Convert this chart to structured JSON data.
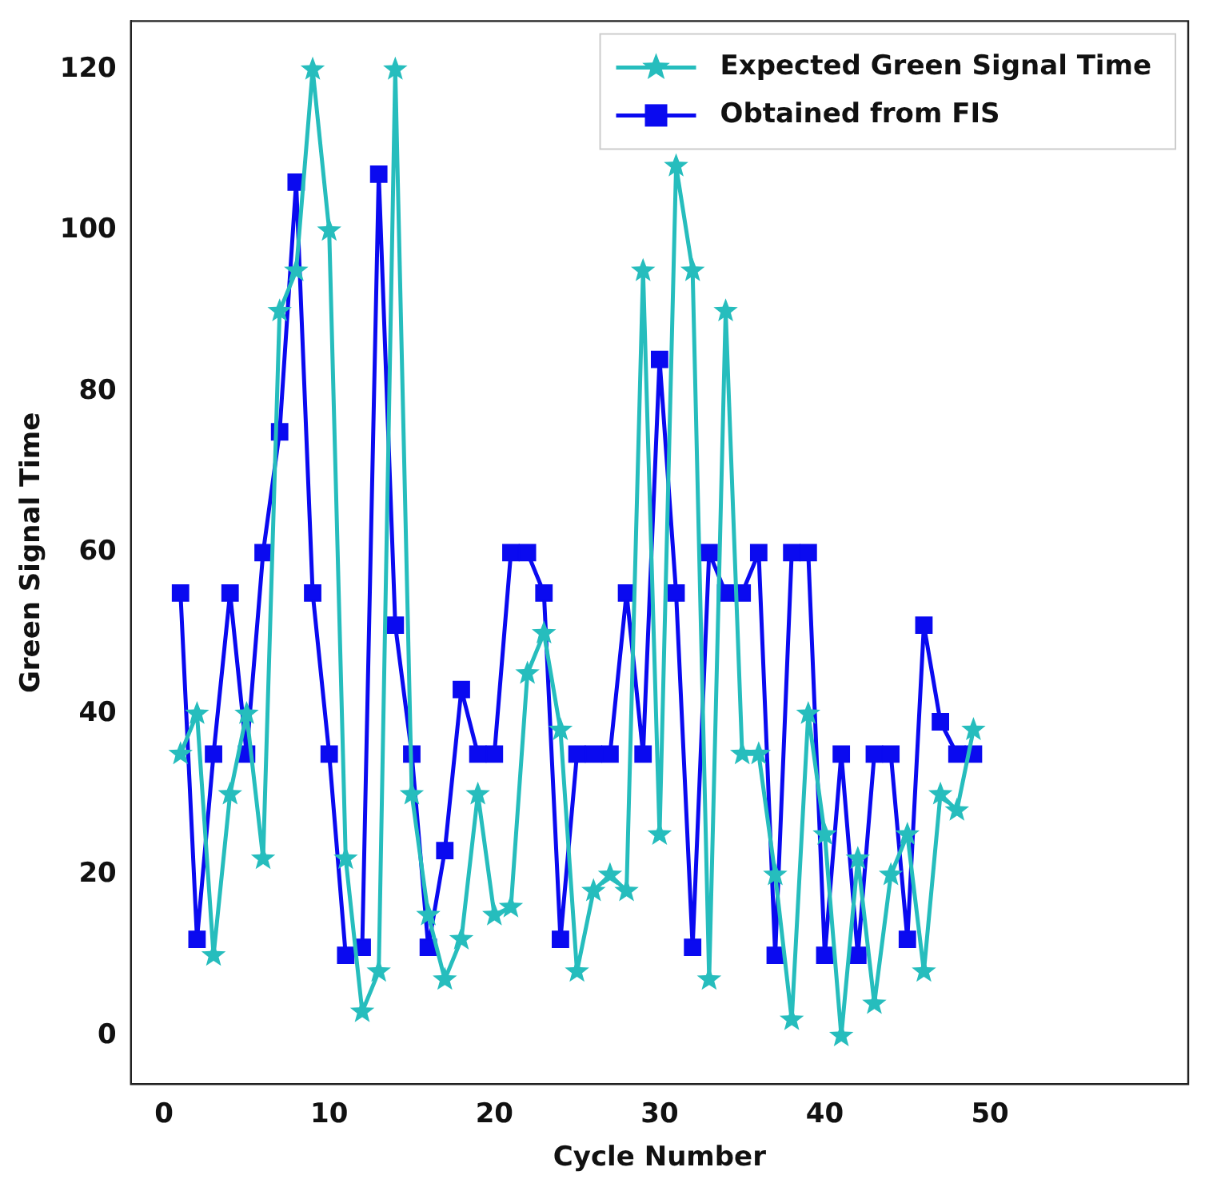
{
  "chart_data": {
    "type": "line",
    "xlabel": "Cycle Number",
    "ylabel": "Green Signal Time",
    "x": [
      1,
      2,
      3,
      4,
      5,
      6,
      7,
      8,
      9,
      10,
      11,
      12,
      13,
      14,
      15,
      16,
      17,
      18,
      19,
      20,
      21,
      22,
      23,
      24,
      25,
      26,
      27,
      28,
      29,
      30,
      31,
      32,
      33,
      34,
      35,
      36,
      37,
      38,
      39,
      40,
      41,
      42,
      43,
      44,
      45,
      46,
      47,
      48,
      49
    ],
    "series": [
      {
        "name": "Expected Green Signal Time",
        "color": "#26bdbd",
        "marker": "star",
        "values": [
          35,
          40,
          10,
          30,
          40,
          22,
          90,
          95,
          120,
          100,
          22,
          3,
          8,
          120,
          30,
          15,
          7,
          12,
          30,
          15,
          16,
          45,
          50,
          38,
          8,
          18,
          20,
          18,
          95,
          25,
          108,
          95,
          7,
          90,
          35,
          35,
          20,
          2,
          40,
          25,
          0,
          22,
          4,
          20,
          25,
          8,
          30,
          28,
          38
        ]
      },
      {
        "name": "Obtained from FIS",
        "color": "#0a0af0",
        "marker": "square",
        "values": [
          55,
          12,
          35,
          55,
          35,
          60,
          75,
          106,
          55,
          35,
          10,
          11,
          107,
          51,
          35,
          11,
          23,
          43,
          35,
          35,
          60,
          60,
          55,
          12,
          35,
          35,
          35,
          55,
          35,
          84,
          55,
          11,
          60,
          55,
          55,
          60,
          10,
          60,
          60,
          10,
          35,
          10,
          35,
          35,
          12,
          51,
          39,
          35,
          35
        ]
      }
    ],
    "xlim": [
      -2,
      62
    ],
    "xticks": [
      0,
      10,
      20,
      30,
      40,
      50
    ],
    "ylim": [
      -6,
      126
    ],
    "yticks": [
      0,
      20,
      40,
      60,
      80,
      100,
      120
    ],
    "grid": false,
    "legend": "top right",
    "line_style": "solid"
  }
}
